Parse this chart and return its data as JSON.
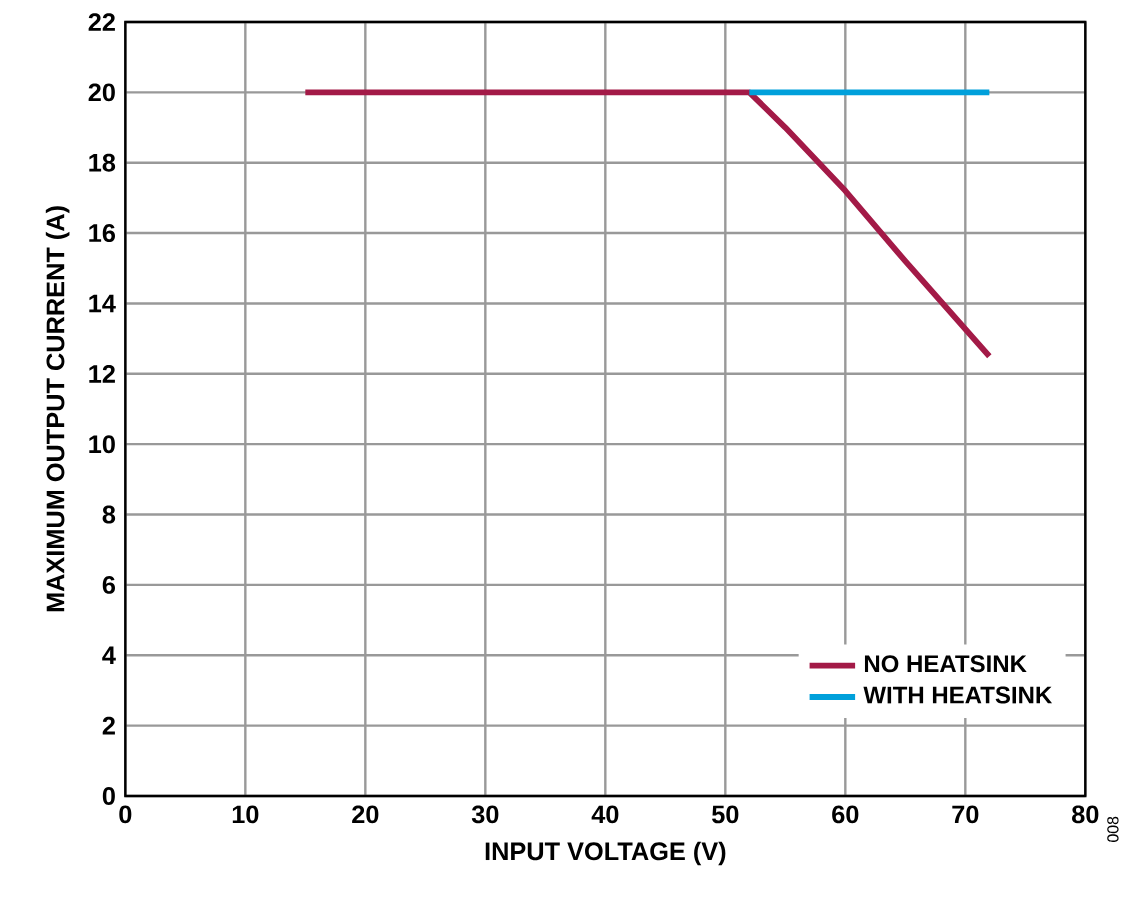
{
  "chart_data": {
    "type": "line",
    "xlabel": "INPUT VOLTAGE (V)",
    "ylabel": "MAXIMUM OUTPUT CURRENT (A)",
    "series": [
      {
        "name": "NO HEATSINK",
        "color": "#a31a47",
        "x": [
          15,
          52,
          55,
          60,
          65,
          72
        ],
        "values": [
          20,
          20,
          19,
          17.2,
          15.2,
          12.5
        ]
      },
      {
        "name": "WITH HEATSINK",
        "color": "#00a0db",
        "x": [
          52,
          72
        ],
        "values": [
          20,
          20
        ]
      }
    ],
    "xlim": [
      0,
      80
    ],
    "xticks": [
      0,
      10,
      20,
      30,
      40,
      50,
      60,
      70,
      80
    ],
    "ylim": [
      0,
      22
    ],
    "yticks": [
      0,
      2,
      4,
      6,
      8,
      10,
      12,
      14,
      16,
      18,
      20,
      22
    ],
    "grid": true,
    "legend": "bottom right",
    "annotations": [
      "008"
    ]
  }
}
